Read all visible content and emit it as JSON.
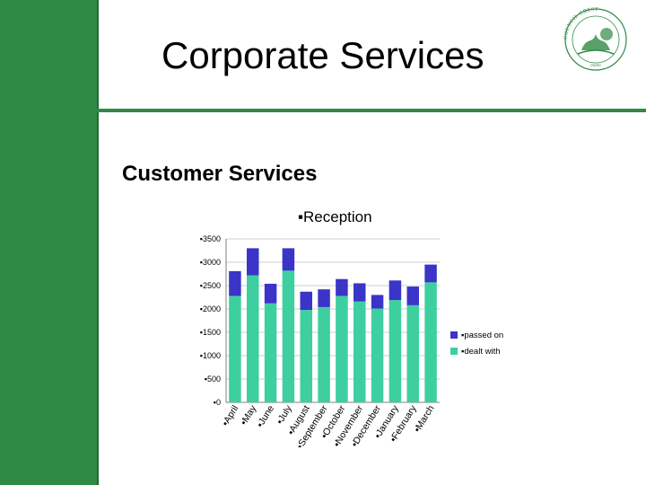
{
  "slide": {
    "title": "Corporate Services",
    "subtitle": "Customer Services",
    "colors": {
      "green": "#2f8a45",
      "dealt": "#3dcfa0",
      "passed": "#3a34c8"
    }
  },
  "chart_data": {
    "type": "bar",
    "stacked": true,
    "title": "▪Reception",
    "categories": [
      "▪April",
      "▪May",
      "▪June",
      "▪July",
      "▪August",
      "▪September",
      "▪October",
      "▪November",
      "▪December",
      "▪January",
      "▪February",
      "▪March"
    ],
    "series": [
      {
        "name": "▪dealt with",
        "color": "#3dcfa0",
        "values": [
          2280,
          2720,
          2120,
          2820,
          1980,
          2040,
          2280,
          2160,
          2010,
          2190,
          2080,
          2570
        ]
      },
      {
        "name": "▪passed on",
        "color": "#3a34c8",
        "values": [
          530,
          580,
          420,
          480,
          390,
          380,
          360,
          390,
          290,
          420,
          400,
          380
        ]
      }
    ],
    "yticks": [
      "▪0",
      "▪500",
      "▪1000",
      "▪1500",
      "▪2000",
      "▪2500",
      "▪3000",
      "▪3500"
    ],
    "ylim": [
      0,
      3500
    ],
    "grid": true,
    "legend": "right"
  }
}
